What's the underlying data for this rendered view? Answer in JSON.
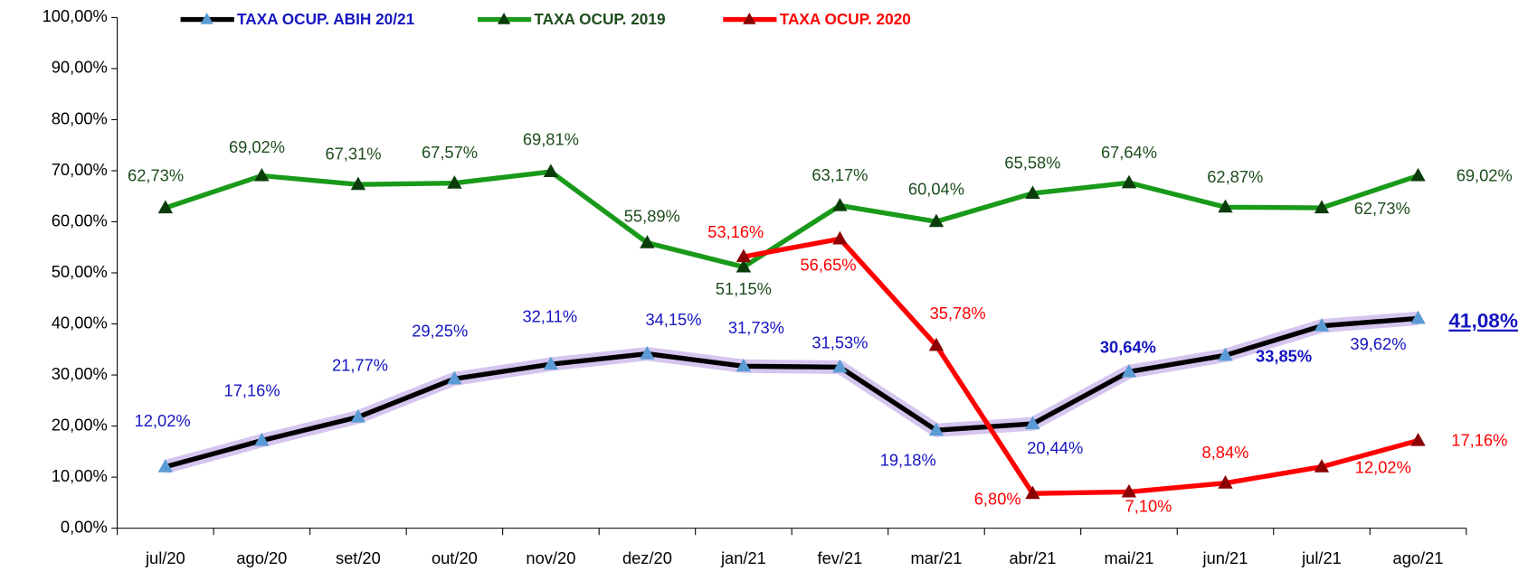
{
  "chart_data": {
    "type": "line",
    "categories": [
      "jul/20",
      "ago/20",
      "set/20",
      "out/20",
      "nov/20",
      "dez/20",
      "jan/21",
      "fev/21",
      "mar/21",
      "abr/21",
      "mai/21",
      "jun/21",
      "jul/21",
      "ago/21"
    ],
    "series": [
      {
        "name": "TAXA OCUP. ABIH 20/21",
        "color": "#000000",
        "marker_color": "#5b9bd5",
        "label_color": "#1515c0",
        "values": [
          12.02,
          17.16,
          21.77,
          29.25,
          32.11,
          34.15,
          31.73,
          31.53,
          19.18,
          20.44,
          30.64,
          33.85,
          39.62,
          41.08
        ],
        "value_labels": [
          "12,02%",
          "17,16%",
          "21,77%",
          "29,25%",
          "32,11%",
          "34,15%",
          "31,73%",
          "31,53%",
          "19,18%",
          "20,44%",
          "30,64%",
          "33,85%",
          "39,62%",
          "41,08%"
        ]
      },
      {
        "name": "TAXA OCUP. 2019",
        "color": "#1a9a1a",
        "marker_color": "#0b3d0b",
        "label_color": "#1e4d1e",
        "values": [
          62.73,
          69.02,
          67.31,
          67.57,
          69.81,
          55.89,
          51.15,
          63.17,
          60.04,
          65.58,
          67.64,
          62.87,
          62.73,
          69.02
        ],
        "value_labels": [
          "62,73%",
          "69,02%",
          "67,31%",
          "67,57%",
          "69,81%",
          "55,89%",
          "51,15%",
          "63,17%",
          "60,04%",
          "65,58%",
          "67,64%",
          "62,87%",
          "62,73%",
          "69,02%"
        ]
      },
      {
        "name": "TAXA OCUP. 2020",
        "color": "#ff0000",
        "marker_color": "#8b0000",
        "label_color": "#ff0000",
        "values": [
          null,
          null,
          null,
          null,
          null,
          null,
          53.16,
          56.65,
          35.78,
          6.8,
          7.1,
          8.84,
          12.02,
          17.16
        ],
        "value_labels": [
          null,
          null,
          null,
          null,
          null,
          null,
          "53,16%",
          "56,65%",
          "35,78%",
          "6,80%",
          "7,10%",
          "8,84%",
          "12,02%",
          "17,16%"
        ]
      }
    ],
    "ylim": [
      0,
      100
    ],
    "yticks": [
      {
        "value": 0,
        "label": "0,00%"
      },
      {
        "value": 10,
        "label": "10,00%"
      },
      {
        "value": 20,
        "label": "20,00%"
      },
      {
        "value": 30,
        "label": "30,00%"
      },
      {
        "value": 40,
        "label": "40,00%"
      },
      {
        "value": 50,
        "label": "50,00%"
      },
      {
        "value": 60,
        "label": "60,00%"
      },
      {
        "value": 70,
        "label": "70,00%"
      },
      {
        "value": 80,
        "label": "80,00%"
      },
      {
        "value": 90,
        "label": "90,00%"
      },
      {
        "value": 100,
        "label": "100,00%"
      }
    ],
    "grid": false
  }
}
